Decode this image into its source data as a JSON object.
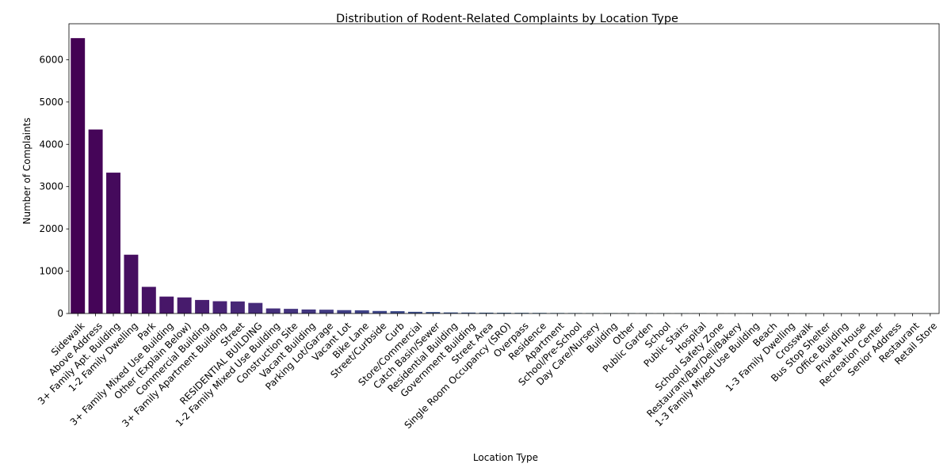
{
  "chart_data": {
    "type": "bar",
    "title": "Distribution of Rodent-Related Complaints by Location Type",
    "xlabel": "Location Type",
    "ylabel": "Number of Complaints",
    "ylim": [
      0,
      6850
    ],
    "yticks": [
      0,
      1000,
      2000,
      3000,
      4000,
      5000,
      6000
    ],
    "grid": false,
    "colormap": "viridis",
    "categories": [
      "Sidewalk",
      "Above Address",
      "3+ Family Apt. Building",
      "1-2 Family Dwelling",
      "Park",
      "3+ Family Mixed Use Building",
      "Other (Explain Below)",
      "Commercial Building",
      "3+ Family Apartment Building",
      "Street",
      "RESIDENTIAL BUILDING",
      "1-2 Family Mixed Use Building",
      "Construction Site",
      "Vacant Building",
      "Parking Lot/Garage",
      "Vacant Lot",
      "Bike Lane",
      "Street/Curbside",
      "Curb",
      "Store/Commercial",
      "Catch Basin/Sewer",
      "Residential Building",
      "Government Building",
      "Street Area",
      "Single Room Occupancy (SRO)",
      "Overpass",
      "Residence",
      "Apartment",
      "School/Pre-School",
      "Day Care/Nursery",
      "Building",
      "Other",
      "Public Garden",
      "School",
      "Public Stairs",
      "Hospital",
      "School Safety Zone",
      "Restaurant/Bar/Deli/Bakery",
      "1-3 Family Mixed Use Building",
      "Beach",
      "1-3 Family Dwelling",
      "Crosswalk",
      "Bus Stop Shelter",
      "Office Building",
      "Private House",
      "Recreation Center",
      "Senior Address",
      "Restaurant",
      "Retail Store"
    ],
    "values": [
      6510,
      4350,
      3330,
      1390,
      630,
      400,
      380,
      320,
      290,
      285,
      250,
      120,
      110,
      95,
      90,
      80,
      75,
      60,
      55,
      40,
      35,
      25,
      22,
      20,
      18,
      16,
      14,
      12,
      11,
      10,
      9,
      9,
      8,
      7,
      6,
      5,
      4,
      3,
      3,
      2,
      2,
      2,
      1,
      1,
      1,
      1,
      1,
      1,
      1
    ]
  }
}
